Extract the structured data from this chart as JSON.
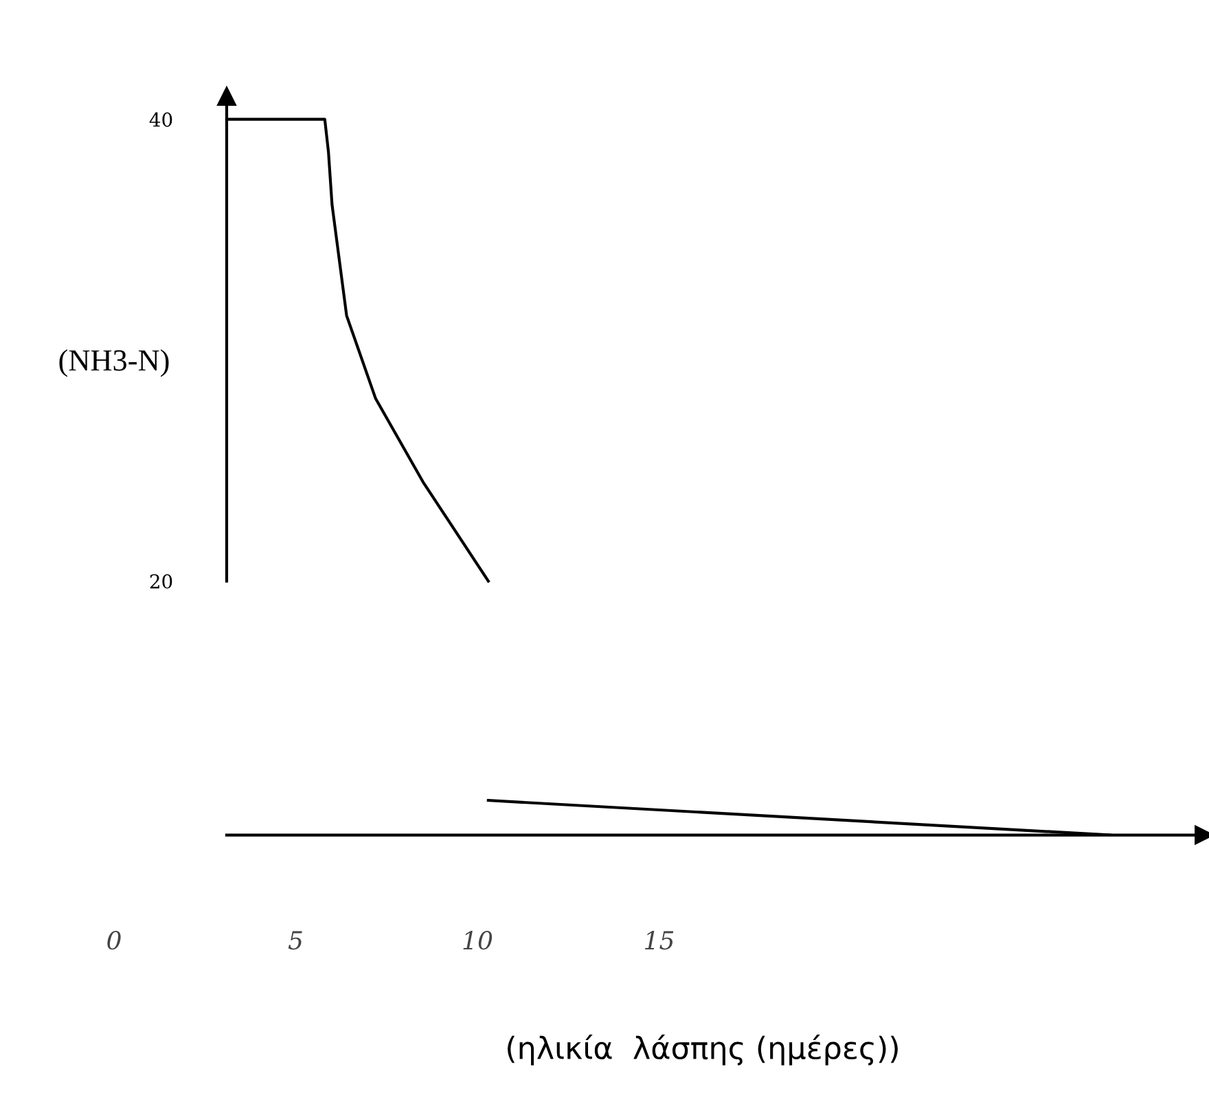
{
  "chart_data": {
    "type": "line",
    "xlabel": "(ηλικία  λάσπης (ημέρες))",
    "ylabel": "(NH3-N)",
    "series": [
      {
        "color": "#000000",
        "x": [
          3.1,
          5.8,
          5.9,
          6.0,
          6.4,
          7.2,
          8.5,
          10.3
        ],
        "values": [
          40,
          40,
          38.6,
          36.3,
          31.5,
          27.9,
          24.3,
          20
        ]
      },
      {
        "color": "#000000",
        "x": [
          10.3,
          27.4
        ],
        "values": [
          10.5,
          9
        ]
      }
    ],
    "xlim": [
      0,
      30
    ],
    "ylim": [
      9,
      41
    ],
    "xticks": [
      0,
      5,
      10,
      15
    ],
    "yticks": [
      20,
      40
    ],
    "grid": false,
    "legend": false,
    "marker": "none",
    "line_style": "solid"
  }
}
